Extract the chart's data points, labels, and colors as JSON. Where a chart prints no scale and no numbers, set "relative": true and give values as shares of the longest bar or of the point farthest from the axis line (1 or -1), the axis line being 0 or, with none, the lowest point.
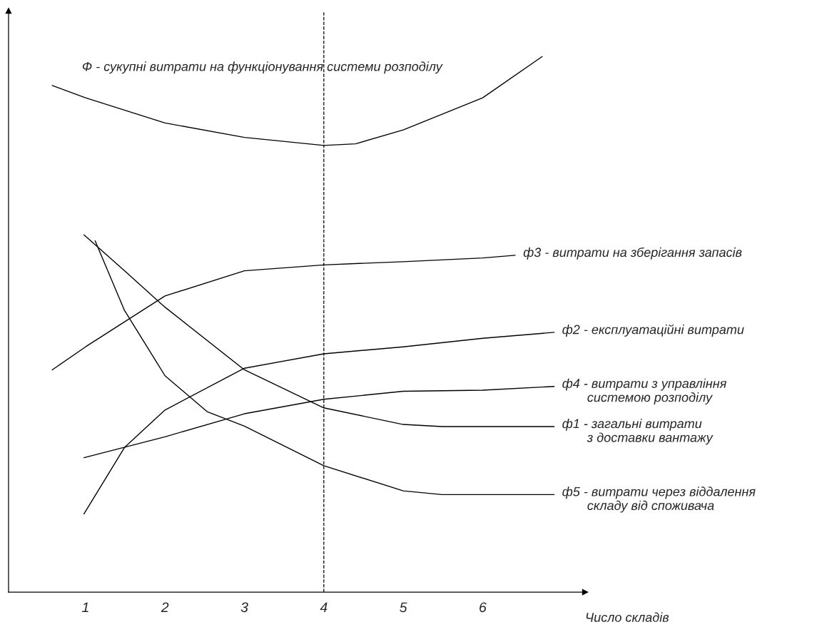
{
  "chart_data": {
    "type": "line",
    "relative": true,
    "xlabel": "Число складів",
    "xlim": [
      0.03,
      7.29
    ],
    "xticks": [
      1,
      2,
      3,
      4,
      5,
      6
    ],
    "tick_labels": "x",
    "grid": false,
    "marker": "none",
    "line_style": "solid",
    "ref_lines": [
      {
        "axis": "x",
        "value": 4,
        "line_style": "dashed",
        "color": "#000000"
      }
    ],
    "series": [
      {
        "name": "Ф - сукупні витрати на функціонування системи розподілу",
        "color": "#000000",
        "x": [
          0.58,
          1,
          2,
          3,
          4,
          4.4,
          5,
          6,
          6.75
        ],
        "values": [
          0.946,
          0.923,
          0.876,
          0.849,
          0.834,
          0.837,
          0.863,
          0.923,
          1.0
        ]
      },
      {
        "name": "ф3 - витрати на зберігання запасів",
        "color": "#000000",
        "x": [
          0.58,
          1,
          2,
          3,
          4,
          5,
          6,
          6.41
        ],
        "values": [
          0.415,
          0.458,
          0.553,
          0.6,
          0.611,
          0.617,
          0.624,
          0.629
        ]
      },
      {
        "name": "ф2 - експлуатаційні витрати",
        "color": "#000000",
        "x": [
          0.98,
          1.49,
          2,
          3,
          4,
          5,
          6,
          6.9
        ],
        "values": [
          0.146,
          0.27,
          0.34,
          0.418,
          0.445,
          0.458,
          0.474,
          0.485
        ]
      },
      {
        "name": "ф4 - витрати з управління\n       системою розподілу",
        "color": "#000000",
        "x": [
          0.98,
          2,
          3,
          4,
          5,
          6,
          6.9
        ],
        "values": [
          0.251,
          0.29,
          0.333,
          0.36,
          0.375,
          0.377,
          0.384
        ]
      },
      {
        "name": "ф1 - загальні витрати\n       з доставки вантажу",
        "color": "#000000",
        "x": [
          0.98,
          1.49,
          2,
          3,
          4,
          5,
          5.49,
          6.9
        ],
        "values": [
          0.667,
          0.6,
          0.532,
          0.415,
          0.344,
          0.313,
          0.309,
          0.309
        ]
      },
      {
        "name": "ф5 - витрати через віддалення\n       складу від споживача",
        "color": "#000000",
        "x": [
          1.12,
          1.49,
          2,
          2.53,
          3,
          4,
          5,
          5.49,
          6.9
        ],
        "values": [
          0.656,
          0.526,
          0.404,
          0.337,
          0.31,
          0.236,
          0.189,
          0.182,
          0.182
        ]
      }
    ]
  }
}
